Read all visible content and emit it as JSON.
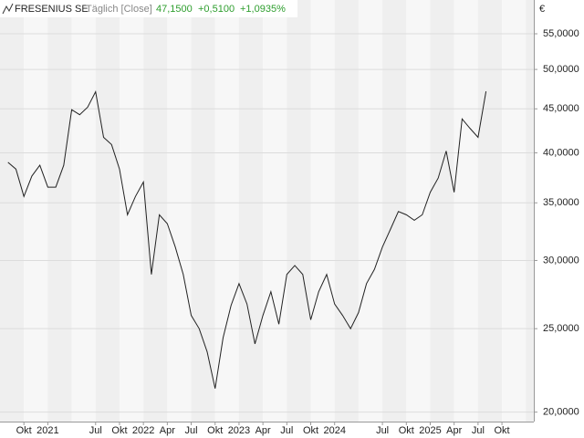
{
  "header": {
    "title": "FRESENIUS SE",
    "interval": "Täglich [Close]",
    "last": "47,1500",
    "change": "+0,5100",
    "change_pct": "+1,0935%"
  },
  "chart_data": {
    "type": "line",
    "log_scale": true,
    "grid": true,
    "currency": "€",
    "x": [
      "2020-08",
      "2020-09",
      "2020-10",
      "2020-11",
      "2020-12",
      "2021-01",
      "2021-02",
      "2021-03",
      "2021-04",
      "2021-05",
      "2021-06",
      "2021-07",
      "2021-08",
      "2021-09",
      "2021-10",
      "2021-11",
      "2021-12",
      "2022-01",
      "2022-02",
      "2022-03",
      "2022-04",
      "2022-05",
      "2022-06",
      "2022-07",
      "2022-08",
      "2022-09",
      "2022-10",
      "2022-11",
      "2022-12",
      "2023-01",
      "2023-02",
      "2023-03",
      "2023-04",
      "2023-05",
      "2023-06",
      "2023-07",
      "2023-08",
      "2023-09",
      "2023-10",
      "2023-11",
      "2023-12",
      "2024-01",
      "2024-02",
      "2024-03",
      "2024-04",
      "2024-05",
      "2024-06",
      "2024-07",
      "2024-08",
      "2024-09",
      "2024-10",
      "2024-11",
      "2024-12",
      "2025-01",
      "2025-02",
      "2025-03",
      "2025-04",
      "2025-05",
      "2025-06",
      "2025-07",
      "2025-08"
    ],
    "series": [
      {
        "name": "FRESENIUS SE",
        "color": "#222222",
        "values": [
          39.0,
          38.3,
          35.6,
          37.6,
          38.7,
          36.5,
          36.5,
          38.7,
          44.9,
          44.3,
          45.2,
          47.1,
          41.7,
          40.9,
          38.3,
          33.9,
          35.6,
          37.0,
          28.9,
          33.9,
          33.1,
          31.1,
          28.9,
          25.9,
          25.0,
          23.5,
          21.3,
          24.4,
          26.6,
          28.2,
          26.7,
          24.0,
          25.9,
          27.6,
          25.3,
          28.9,
          29.6,
          28.9,
          25.6,
          27.6,
          28.9,
          26.7,
          25.9,
          25.0,
          26.1,
          28.2,
          29.3,
          31.1,
          32.6,
          34.2,
          33.9,
          33.4,
          33.9,
          36.0,
          37.4,
          40.2,
          36.0,
          43.8,
          42.7,
          41.7,
          47.15
        ]
      }
    ],
    "xlim": [
      "2020-07",
      "2026-02"
    ],
    "xticks": [
      {
        "value": "2020-10",
        "label": "Okt"
      },
      {
        "value": "2021-01",
        "label": "2021"
      },
      {
        "value": "2021-07",
        "label": "Jul"
      },
      {
        "value": "2021-10",
        "label": "Okt"
      },
      {
        "value": "2022-01",
        "label": "2022"
      },
      {
        "value": "2022-04",
        "label": "Apr"
      },
      {
        "value": "2022-07",
        "label": "Jul"
      },
      {
        "value": "2022-10",
        "label": "Okt"
      },
      {
        "value": "2023-01",
        "label": "2023"
      },
      {
        "value": "2023-04",
        "label": "Apr"
      },
      {
        "value": "2023-07",
        "label": "Jul"
      },
      {
        "value": "2023-10",
        "label": "Okt"
      },
      {
        "value": "2024-01",
        "label": "2024"
      },
      {
        "value": "2024-07",
        "label": "Jul"
      },
      {
        "value": "2024-10",
        "label": "Okt"
      },
      {
        "value": "2025-01",
        "label": "2025"
      },
      {
        "value": "2025-04",
        "label": "Apr"
      },
      {
        "value": "2025-07",
        "label": "Jul"
      },
      {
        "value": "2025-10",
        "label": "Okt"
      }
    ],
    "ylim": [
      19.5,
      60.2
    ],
    "yticks": [
      {
        "value": 20,
        "label": "20,0000"
      },
      {
        "value": 25,
        "label": "25,0000"
      },
      {
        "value": 30,
        "label": "30,0000"
      },
      {
        "value": 35,
        "label": "35,0000"
      },
      {
        "value": 40,
        "label": "40,0000"
      },
      {
        "value": 45,
        "label": "45,0000"
      },
      {
        "value": 50,
        "label": "50,0000"
      },
      {
        "value": 55,
        "label": "55,0000"
      }
    ]
  }
}
